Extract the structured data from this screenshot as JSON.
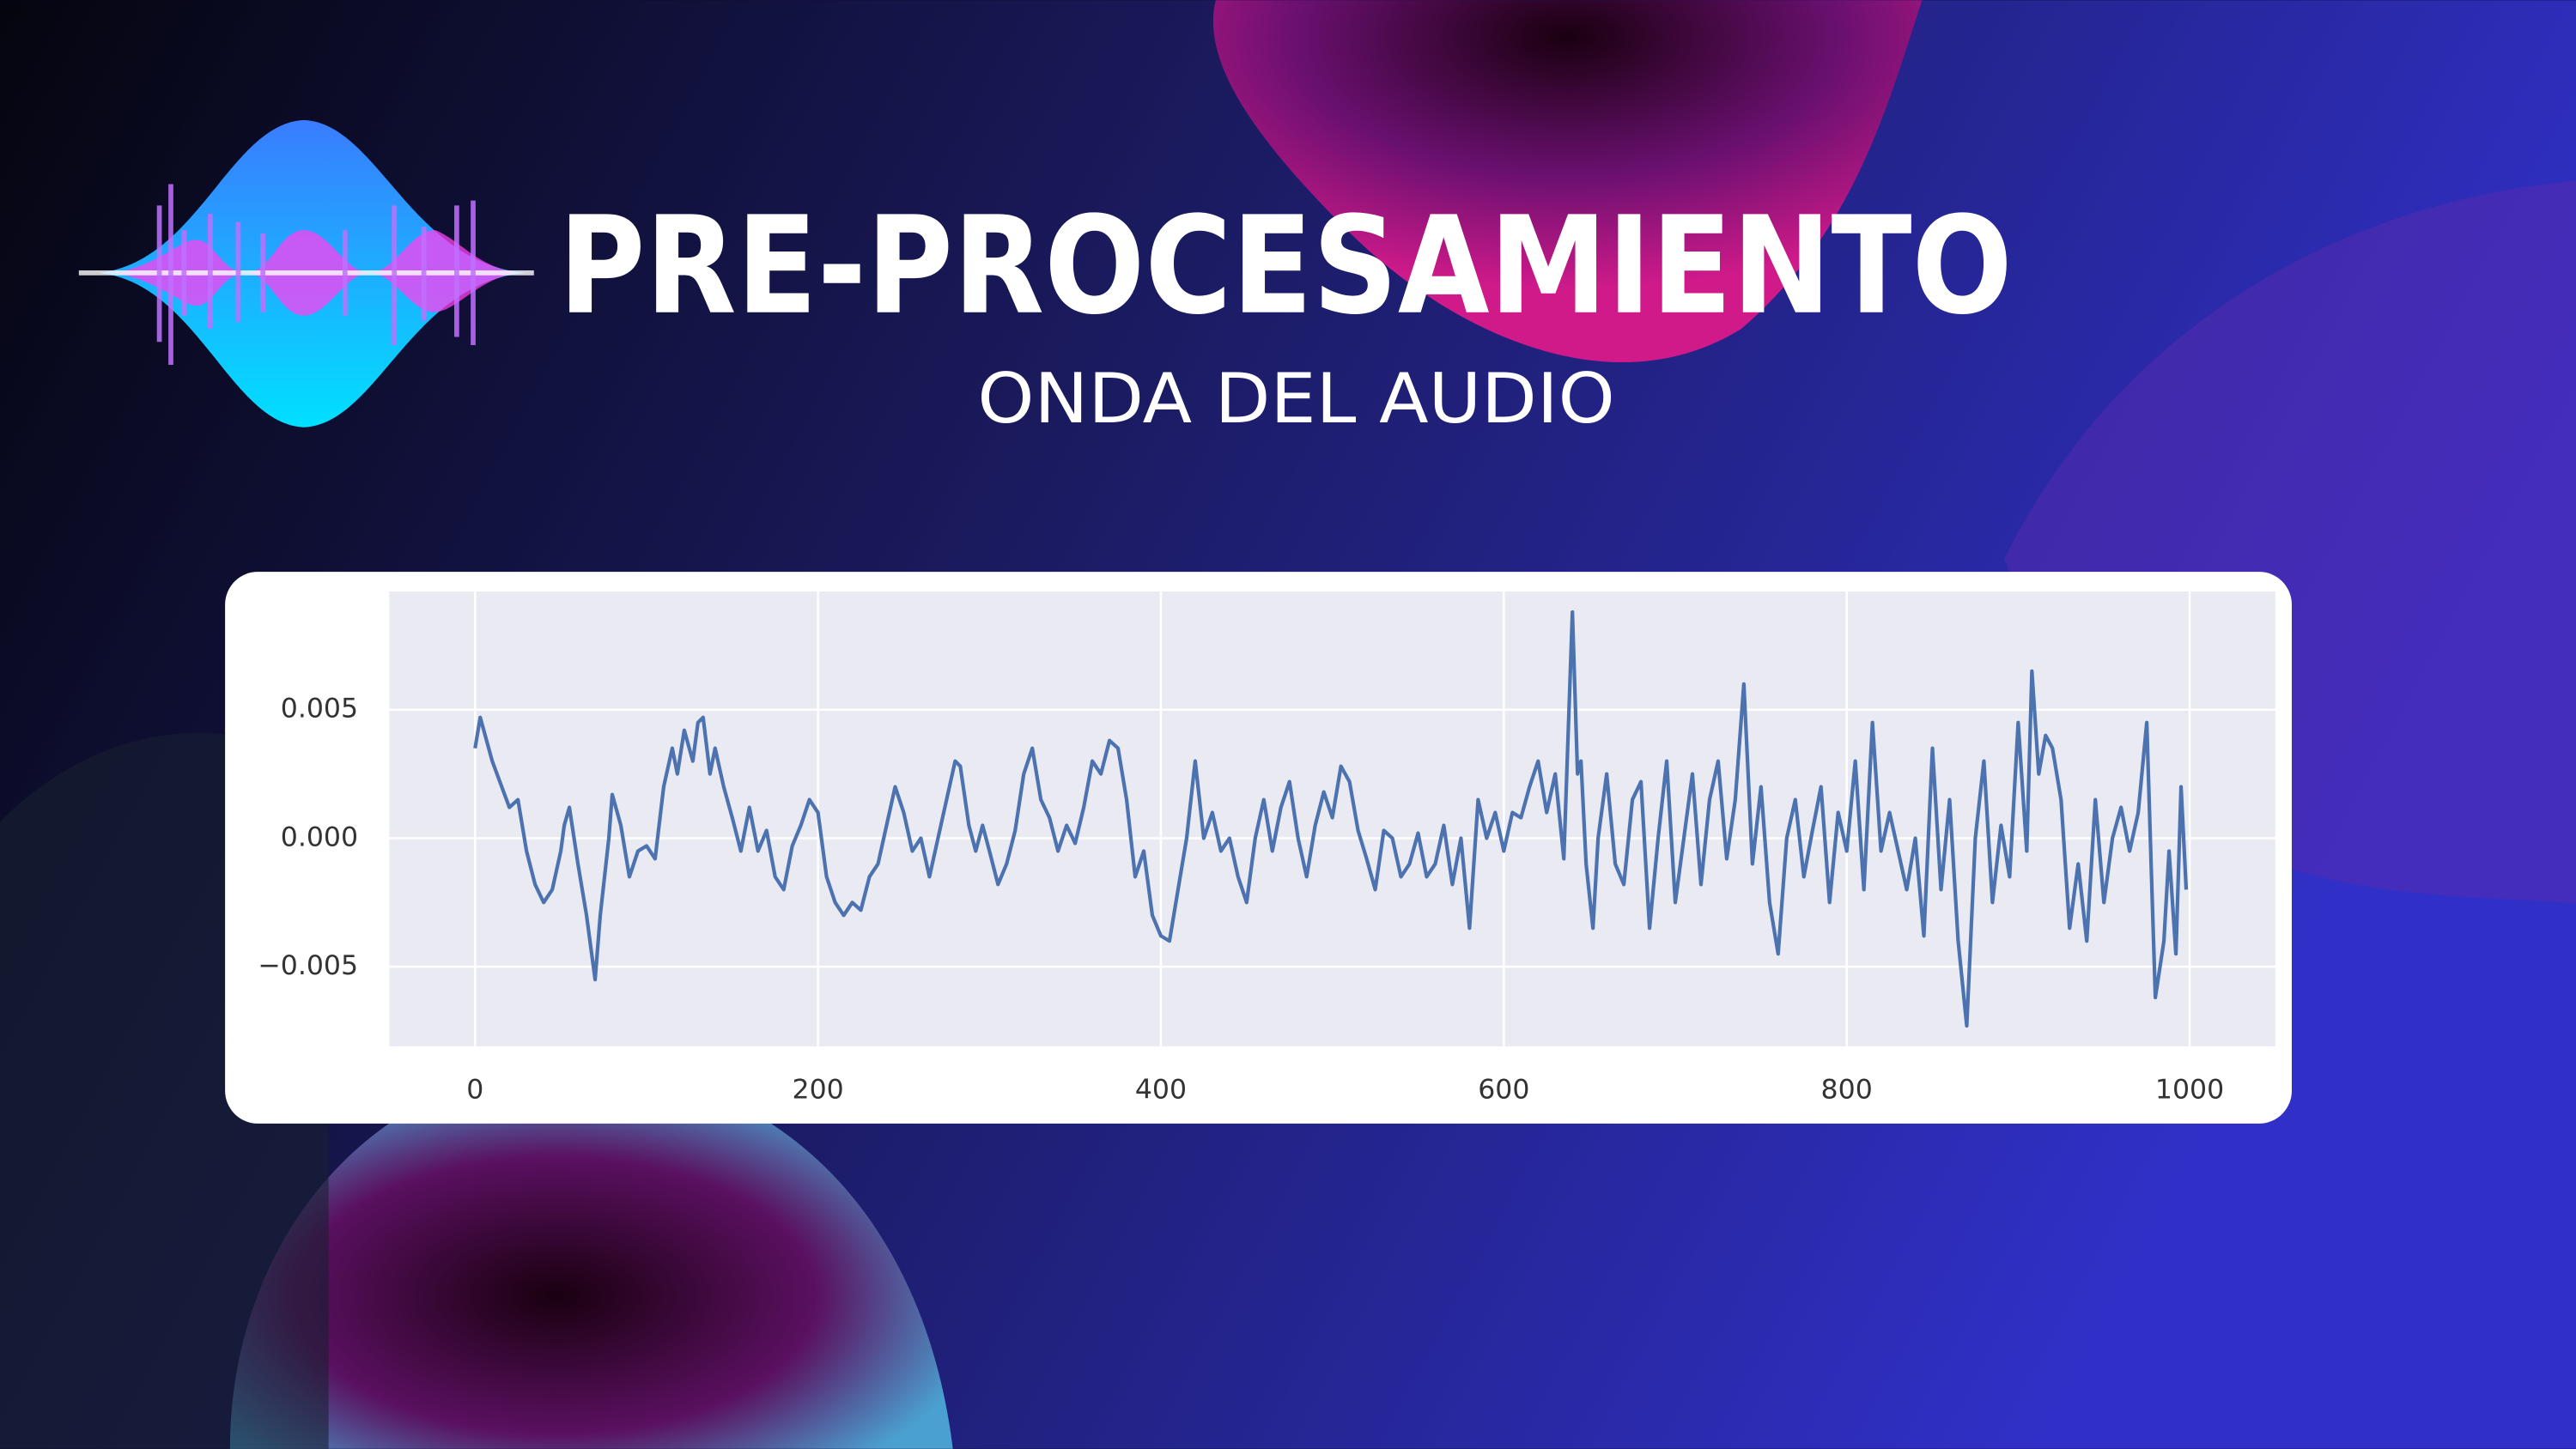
{
  "chart_data": {
    "type": "line",
    "title": "PRE-PROCESAMIENTO",
    "subtitle": "ONDA DEL AUDIO",
    "x": [
      0,
      3,
      10,
      20,
      25,
      30,
      35,
      40,
      45,
      50,
      52,
      55,
      60,
      65,
      70,
      73,
      78,
      80,
      85,
      90,
      95,
      100,
      105,
      110,
      115,
      118,
      122,
      127,
      130,
      133,
      137,
      140,
      145,
      150,
      155,
      160,
      165,
      170,
      175,
      180,
      185,
      190,
      195,
      200,
      205,
      210,
      215,
      220,
      225,
      230,
      235,
      240,
      245,
      250,
      255,
      260,
      265,
      270,
      275,
      280,
      283,
      288,
      292,
      296,
      300,
      305,
      310,
      315,
      320,
      325,
      330,
      335,
      340,
      345,
      350,
      355,
      360,
      365,
      370,
      375,
      380,
      385,
      390,
      395,
      400,
      405,
      410,
      415,
      420,
      425,
      430,
      435,
      440,
      445,
      450,
      455,
      460,
      465,
      470,
      475,
      480,
      485,
      490,
      495,
      500,
      505,
      510,
      515,
      520,
      525,
      530,
      535,
      540,
      545,
      550,
      555,
      560,
      565,
      570,
      575,
      580,
      585,
      590,
      595,
      600,
      605,
      610,
      615,
      620,
      625,
      630,
      635,
      640,
      643,
      645,
      648,
      652,
      655,
      660,
      665,
      670,
      675,
      680,
      685,
      690,
      695,
      700,
      705,
      710,
      715,
      720,
      725,
      730,
      735,
      740,
      745,
      750,
      755,
      760,
      765,
      770,
      775,
      780,
      785,
      790,
      795,
      800,
      805,
      810,
      815,
      820,
      825,
      830,
      835,
      840,
      845,
      850,
      855,
      860,
      865,
      870,
      875,
      880,
      885,
      890,
      895,
      900,
      905,
      908,
      912,
      916,
      920,
      925,
      930,
      935,
      940,
      945,
      950,
      955,
      960,
      965,
      970,
      975,
      978,
      980,
      985,
      988,
      992,
      995,
      998
    ],
    "values": [
      0.0035,
      0.0047,
      0.003,
      0.0012,
      0.0015,
      -0.0005,
      -0.0018,
      -0.0025,
      -0.002,
      -0.0005,
      0.0005,
      0.0012,
      -0.001,
      -0.003,
      -0.0055,
      -0.003,
      0.0,
      0.0017,
      0.0005,
      -0.0015,
      -0.0005,
      -0.0003,
      -0.0008,
      0.002,
      0.0035,
      0.0025,
      0.0042,
      0.003,
      0.0045,
      0.0047,
      0.0025,
      0.0035,
      0.002,
      0.0008,
      -0.0005,
      0.0012,
      -0.0005,
      0.0003,
      -0.0015,
      -0.002,
      -0.0003,
      0.0005,
      0.0015,
      0.001,
      -0.0015,
      -0.0025,
      -0.003,
      -0.0025,
      -0.0028,
      -0.0015,
      -0.001,
      0.0005,
      0.002,
      0.001,
      -0.0005,
      0.0,
      -0.0015,
      0.0,
      0.0015,
      0.003,
      0.0028,
      0.0005,
      -0.0005,
      0.0005,
      -0.0005,
      -0.0018,
      -0.001,
      0.0003,
      0.0025,
      0.0035,
      0.0015,
      0.0008,
      -0.0005,
      0.0005,
      -0.0002,
      0.0012,
      0.003,
      0.0025,
      0.0038,
      0.0035,
      0.0015,
      -0.0015,
      -0.0005,
      -0.003,
      -0.0038,
      -0.004,
      -0.002,
      0.0,
      0.003,
      0.0,
      0.001,
      -0.0005,
      0.0,
      -0.0015,
      -0.0025,
      0.0,
      0.0015,
      -0.0005,
      0.0012,
      0.0022,
      0.0,
      -0.0015,
      0.0005,
      0.0018,
      0.0008,
      0.0028,
      0.0022,
      0.0003,
      -0.0008,
      -0.002,
      0.0003,
      0.0,
      -0.0015,
      -0.001,
      0.0002,
      -0.0015,
      -0.001,
      0.0005,
      -0.0018,
      0.0,
      -0.0035,
      0.0015,
      0.0,
      0.001,
      -0.0005,
      0.001,
      0.0008,
      0.002,
      0.003,
      0.001,
      0.0025,
      -0.0008,
      0.0088,
      0.0025,
      0.003,
      -0.001,
      -0.0035,
      0.0,
      0.0025,
      -0.001,
      -0.0018,
      0.0015,
      0.0022,
      -0.0035,
      0.0,
      0.003,
      -0.0025,
      0.0,
      0.0025,
      -0.0018,
      0.0015,
      0.003,
      -0.0008,
      0.0015,
      0.006,
      -0.001,
      0.002,
      -0.0025,
      -0.0045,
      0.0,
      0.0015,
      -0.0015,
      0.0003,
      0.002,
      -0.0025,
      0.001,
      -0.0005,
      0.003,
      -0.002,
      0.0045,
      -0.0005,
      0.001,
      -0.0005,
      -0.002,
      0.0,
      -0.0038,
      0.0035,
      -0.002,
      0.0015,
      -0.004,
      -0.0073,
      0.0,
      0.003,
      -0.0025,
      0.0005,
      -0.0015,
      0.0045,
      -0.0005,
      0.0065,
      0.0025,
      0.004,
      0.0035,
      0.0015,
      -0.0035,
      -0.001,
      -0.004,
      0.0015,
      -0.0025,
      0.0,
      0.0012,
      -0.0005,
      0.001,
      0.0045,
      -0.002,
      -0.0062,
      -0.004,
      -0.0005,
      -0.0045,
      0.002,
      -0.002
    ],
    "color": "#4c72b0",
    "xlim": [
      -50,
      1050
    ],
    "ylim": [
      -0.0081,
      0.0096
    ],
    "xticks": [
      0,
      200,
      400,
      600,
      800,
      1000
    ],
    "yticks": [
      {
        "value": -0.005,
        "label": "−0.005"
      },
      {
        "value": 0,
        "label": "0.000"
      },
      0.005
    ],
    "grid": true
  }
}
